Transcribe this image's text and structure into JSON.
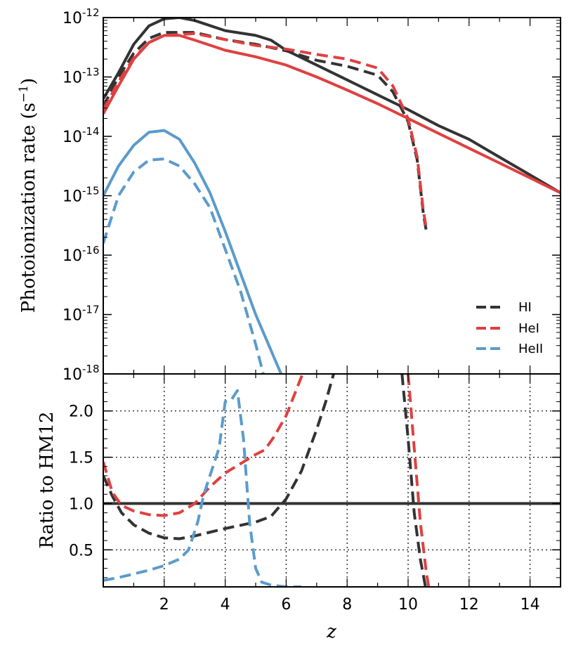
{
  "chart_data": [
    {
      "type": "line",
      "panel": "top",
      "ylabel": "Photoionization rate (s",
      "ylabel_sup": "−1",
      "ylabel_close": ")",
      "yscale": "log",
      "xlim": [
        0,
        15
      ],
      "ylim_exp": [
        -18,
        -12
      ],
      "yticks": [
        {
          "base": "10",
          "exp": "-12"
        },
        {
          "base": "10",
          "exp": "-13"
        },
        {
          "base": "10",
          "exp": "-14"
        },
        {
          "base": "10",
          "exp": "-15"
        },
        {
          "base": "10",
          "exp": "-16"
        },
        {
          "base": "10",
          "exp": "-17"
        },
        {
          "base": "10",
          "exp": "-18"
        }
      ],
      "legend": [
        "HI",
        "HeI",
        "HeII"
      ],
      "series": [
        {
          "name": "HI",
          "style": "solid",
          "color": "#333333",
          "x": [
            0,
            0.5,
            1,
            1.5,
            2,
            2.5,
            3,
            4,
            5,
            5.5,
            6,
            7,
            8,
            9,
            10,
            11,
            12,
            13,
            14,
            15
          ],
          "log10y": [
            -13.37,
            -12.93,
            -12.45,
            -12.14,
            -12.02,
            -12.0,
            -12.05,
            -12.22,
            -12.3,
            -12.38,
            -12.55,
            -12.8,
            -13.05,
            -13.3,
            -13.55,
            -13.82,
            -14.05,
            -14.35,
            -14.65,
            -14.95
          ]
        },
        {
          "name": "HI",
          "style": "dashed",
          "color": "#333333",
          "x": [
            0,
            0.5,
            1,
            1.5,
            2,
            3,
            4,
            5,
            6,
            7,
            8,
            9,
            9.5,
            10,
            10.3,
            10.5,
            10.6
          ],
          "log10y": [
            -13.5,
            -13.0,
            -12.6,
            -12.35,
            -12.25,
            -12.25,
            -12.37,
            -12.45,
            -12.56,
            -12.72,
            -12.82,
            -12.97,
            -13.25,
            -13.75,
            -14.4,
            -15.3,
            -15.6
          ]
        },
        {
          "name": "HeI",
          "style": "solid",
          "color": "#e04040",
          "x": [
            0,
            0.5,
            1,
            1.5,
            2,
            2.5,
            3,
            4,
            5,
            6,
            7,
            8,
            9,
            10,
            11,
            12,
            13,
            14,
            15
          ],
          "log10y": [
            -13.62,
            -13.15,
            -12.7,
            -12.42,
            -12.3,
            -12.3,
            -12.38,
            -12.55,
            -12.66,
            -12.8,
            -13.0,
            -13.22,
            -13.45,
            -13.7,
            -13.95,
            -14.2,
            -14.45,
            -14.7,
            -14.95
          ]
        },
        {
          "name": "HeI",
          "style": "dashed",
          "color": "#e04040",
          "x": [
            0,
            0.5,
            1,
            1.5,
            2,
            3,
            4,
            5,
            6,
            7,
            8,
            9,
            9.5,
            10,
            10.3,
            10.5,
            10.6
          ],
          "log10y": [
            -13.55,
            -13.08,
            -12.68,
            -12.42,
            -12.3,
            -12.27,
            -12.37,
            -12.47,
            -12.53,
            -12.62,
            -12.7,
            -12.85,
            -13.15,
            -13.7,
            -14.35,
            -15.25,
            -15.55
          ]
        },
        {
          "name": "HeII",
          "style": "solid",
          "color": "#5b9bcc",
          "x": [
            0,
            0.5,
            1,
            1.5,
            2,
            2.5,
            3,
            3.5,
            4,
            4.5,
            5,
            5.5,
            6,
            6.2
          ],
          "log10y": [
            -15.0,
            -14.5,
            -14.15,
            -13.93,
            -13.9,
            -14.05,
            -14.45,
            -14.95,
            -15.6,
            -16.3,
            -17.0,
            -17.6,
            -18.2,
            -18.3
          ]
        },
        {
          "name": "HeII",
          "style": "dashed",
          "color": "#5b9bcc",
          "x": [
            0,
            0.5,
            1,
            1.5,
            2,
            2.5,
            3,
            3.5,
            4,
            4.5,
            5,
            5.3
          ],
          "log10y": [
            -15.8,
            -15.0,
            -14.6,
            -14.4,
            -14.38,
            -14.5,
            -14.8,
            -15.2,
            -15.9,
            -16.6,
            -17.5,
            -18.1
          ]
        }
      ]
    },
    {
      "type": "line",
      "panel": "bottom",
      "xlabel": "z",
      "ylabel": "Ratio to HM12",
      "xlim": [
        0,
        15
      ],
      "ylim": [
        0.1,
        2.4
      ],
      "xticks": [
        "2",
        "4",
        "6",
        "8",
        "10",
        "12",
        "14"
      ],
      "yticks": [
        "0.5",
        "1.0",
        "1.5",
        "2.0"
      ],
      "grid": true,
      "series": [
        {
          "name": "reference",
          "style": "solid",
          "color": "#333333",
          "x": [
            0,
            15
          ],
          "y": [
            1.0,
            1.0
          ]
        },
        {
          "name": "HI",
          "style": "dashed",
          "color": "#333333",
          "x": [
            0,
            0.3,
            0.6,
            1,
            1.5,
            2,
            2.5,
            3,
            4,
            5,
            5.5,
            6,
            6.5,
            7,
            7.3,
            7.6
          ],
          "y": [
            1.3,
            1.08,
            0.9,
            0.77,
            0.68,
            0.63,
            0.62,
            0.65,
            0.73,
            0.8,
            0.86,
            1.05,
            1.35,
            1.8,
            2.1,
            2.45
          ]
        },
        {
          "name": "HI",
          "style": "dashed",
          "color": "#333333",
          "x": [
            9.8,
            10.0,
            10.2,
            10.4,
            10.6
          ],
          "y": [
            2.4,
            1.7,
            0.9,
            0.4,
            0.05
          ]
        },
        {
          "name": "HeI",
          "style": "dashed",
          "color": "#e04040",
          "x": [
            0,
            0.3,
            0.6,
            1,
            1.5,
            2,
            2.5,
            3,
            3.5,
            4,
            4.5,
            5,
            5.3,
            5.6,
            6,
            6.3,
            6.6
          ],
          "y": [
            1.45,
            1.12,
            0.98,
            0.92,
            0.88,
            0.87,
            0.9,
            1.0,
            1.18,
            1.33,
            1.43,
            1.53,
            1.58,
            1.72,
            1.95,
            2.2,
            2.45
          ]
        },
        {
          "name": "HeI",
          "style": "dashed",
          "color": "#e04040",
          "x": [
            10.0,
            10.2,
            10.4,
            10.6,
            10.7
          ],
          "y": [
            2.4,
            1.6,
            0.8,
            0.25,
            0.05
          ]
        },
        {
          "name": "HeII",
          "style": "dashed",
          "color": "#5b9bcc",
          "x": [
            0,
            0.5,
            1,
            1.5,
            2,
            2.5,
            2.8,
            3.1,
            3.3,
            3.5,
            3.8,
            4.0,
            4.2,
            4.4,
            4.6,
            4.8,
            5.0,
            5.2,
            5.5,
            6.0,
            6.5
          ],
          "y": [
            0.17,
            0.2,
            0.24,
            0.28,
            0.33,
            0.4,
            0.5,
            0.8,
            1.1,
            1.3,
            1.6,
            2.1,
            2.12,
            2.22,
            1.7,
            0.8,
            0.3,
            0.15,
            0.12,
            0.1,
            0.1
          ]
        }
      ]
    }
  ]
}
